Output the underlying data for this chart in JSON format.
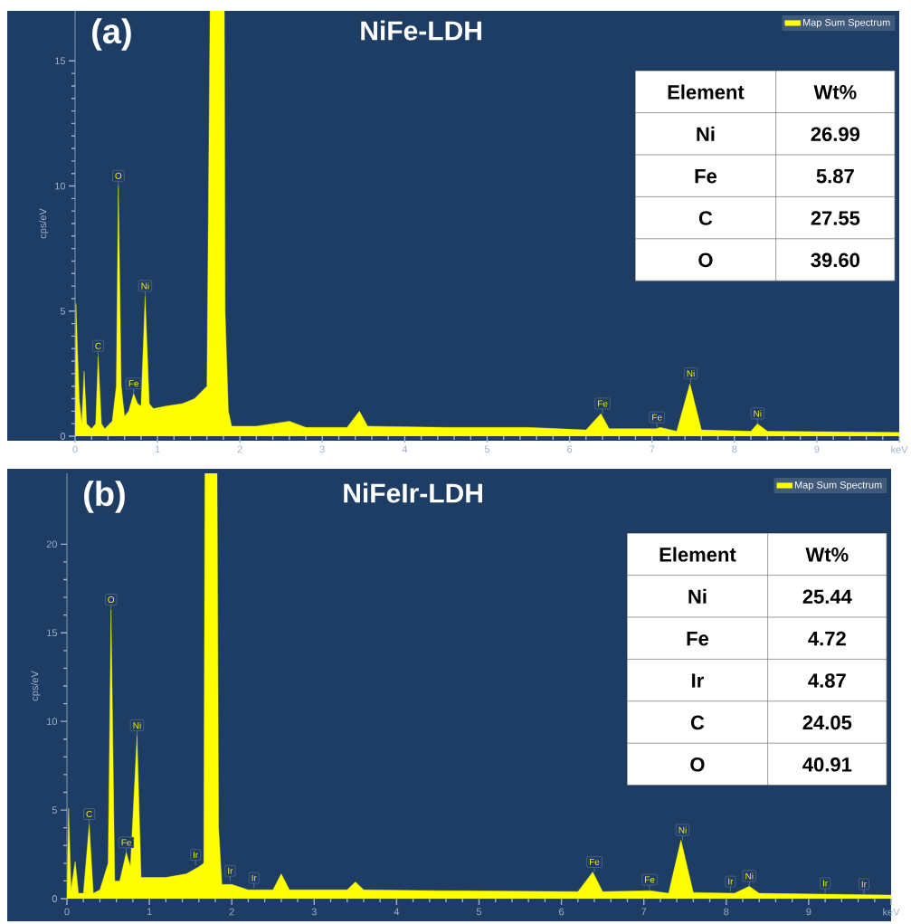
{
  "chart_data": [
    {
      "type": "area",
      "title": "NiFe-LDH",
      "ylabel": "cps/eV",
      "legend": "top right",
      "xlim": [
        0,
        10
      ],
      "xticks": [
        0,
        1,
        2,
        3,
        4,
        5,
        6,
        7,
        8,
        9,
        {
          "value": 10,
          "label": "keV"
        }
      ],
      "ylim": [
        0,
        17
      ],
      "yticks": [
        0,
        5,
        10,
        15
      ],
      "series": [
        {
          "name": "Map Sum Spectrum",
          "color": "#ffff00",
          "x": [
            0,
            0.01,
            0.05,
            0.08,
            0.11,
            0.14,
            0.2,
            0.25,
            0.28,
            0.32,
            0.36,
            0.45,
            0.5,
            0.525,
            0.56,
            0.6,
            0.65,
            0.71,
            0.76,
            0.8,
            0.85,
            0.9,
            0.95,
            1.1,
            1.3,
            1.45,
            1.6,
            1.68,
            1.8,
            1.82,
            1.86,
            1.9,
            2.2,
            2.6,
            2.8,
            3.3,
            3.45,
            3.55,
            4.5,
            5.5,
            6.2,
            6.38,
            6.48,
            7.05,
            7.1,
            7.3,
            7.46,
            7.6,
            8.2,
            8.28,
            8.4,
            10
          ],
          "values": [
            0,
            5.3,
            1.5,
            0.5,
            2.6,
            0.5,
            0.3,
            0.5,
            3.2,
            0.5,
            0.3,
            0.6,
            2,
            10,
            2,
            0.8,
            1.0,
            1.7,
            1.3,
            1.2,
            5.6,
            1.3,
            1.1,
            1.2,
            1.3,
            1.5,
            2.0,
            null,
            null,
            5,
            1,
            0.4,
            0.4,
            0.6,
            0.35,
            0.35,
            1.0,
            0.4,
            0.35,
            0.35,
            0.25,
            0.9,
            0.3,
            0.3,
            0.35,
            0.2,
            2.1,
            0.25,
            0.2,
            0.5,
            0.2,
            0.15
          ]
        }
      ],
      "annotations": [
        "(a)",
        "Element",
        "Wt%",
        "Ni",
        "26.99",
        "Fe",
        "5.87",
        "C",
        "27.55",
        "O",
        "39.60",
        {
          "text": "C",
          "x": 0.28,
          "y": 3.2
        },
        {
          "text": "O",
          "x": 0.525,
          "y": 10
        },
        {
          "text": "Fe",
          "x": 0.71,
          "y": 1.7
        },
        {
          "text": "Ni",
          "x": 0.85,
          "y": 5.6
        },
        {
          "text": "Fe",
          "x": 6.4,
          "y": 0.9
        },
        {
          "text": "Fe",
          "x": 7.06,
          "y": 0.35
        },
        {
          "text": "Ni",
          "x": 7.47,
          "y": 2.1
        },
        {
          "text": "Ni",
          "x": 8.28,
          "y": 0.5
        }
      ]
    },
    {
      "type": "area",
      "title": "NiFeIr-LDH",
      "ylabel": "cps/eV",
      "legend": "top right",
      "xlim": [
        0,
        10
      ],
      "xticks": [
        0,
        1,
        2,
        3,
        4,
        5,
        6,
        7,
        8,
        9,
        {
          "value": 10,
          "label": "keV"
        }
      ],
      "ylim": [
        0,
        24
      ],
      "yticks": [
        0,
        5,
        10,
        15,
        20
      ],
      "series": [
        {
          "name": "Map Sum Spectrum",
          "color": "#ffff00",
          "x": [
            0,
            0.02,
            0.05,
            0.1,
            0.14,
            0.2,
            0.27,
            0.32,
            0.4,
            0.5,
            0.535,
            0.58,
            0.64,
            0.72,
            0.77,
            0.85,
            0.9,
            1.2,
            1.45,
            1.6,
            1.66,
            1.69,
            1.8,
            1.84,
            1.88,
            2.0,
            2.2,
            2.5,
            2.6,
            2.7,
            3.4,
            3.5,
            3.6,
            4.5,
            6.2,
            6.38,
            6.5,
            7.08,
            7.3,
            7.45,
            7.6,
            8.1,
            8.28,
            8.4,
            9.2,
            10
          ],
          "values": [
            0,
            5.1,
            0.5,
            2.1,
            0.3,
            0.3,
            4.2,
            0.3,
            0.5,
            2,
            16.3,
            1,
            1,
            2.6,
            1.8,
            9.2,
            1.2,
            1.2,
            1.4,
            1.8,
            2.0,
            null,
            null,
            4,
            0.8,
            0.8,
            0.5,
            0.5,
            1.4,
            0.5,
            0.5,
            0.95,
            0.5,
            0.45,
            0.4,
            1.5,
            0.4,
            0.45,
            0.3,
            3.3,
            0.35,
            0.3,
            0.7,
            0.3,
            0.25,
            0.2
          ]
        }
      ],
      "annotations": [
        "(b)",
        "Element",
        "Wt%",
        "Ni",
        "25.44",
        "Fe",
        "4.72",
        "Ir",
        "4.87",
        "C",
        "24.05",
        "O",
        "40.91",
        {
          "text": "C",
          "x": 0.27,
          "y": 4.2
        },
        {
          "text": "O",
          "x": 0.535,
          "y": 16.3
        },
        {
          "text": "Fe",
          "x": 0.72,
          "y": 2.6
        },
        {
          "text": "Ni",
          "x": 0.85,
          "y": 9.2
        },
        {
          "text": "Ir",
          "x": 1.56,
          "y": 1.9
        },
        {
          "text": "Ir",
          "x": 1.98,
          "y": 1.0
        },
        {
          "text": "Ir",
          "x": 2.27,
          "y": 0.6
        },
        {
          "text": "Fe",
          "x": 6.4,
          "y": 1.5
        },
        {
          "text": "Fe",
          "x": 7.07,
          "y": 0.5
        },
        {
          "text": "Ni",
          "x": 7.47,
          "y": 3.3
        },
        {
          "text": "Ir",
          "x": 8.05,
          "y": 0.4
        },
        {
          "text": "Ni",
          "x": 8.28,
          "y": 0.7
        },
        {
          "text": "Ir",
          "x": 9.2,
          "y": 0.3
        },
        {
          "text": "Ir",
          "x": 9.67,
          "y": 0.25
        }
      ]
    }
  ]
}
